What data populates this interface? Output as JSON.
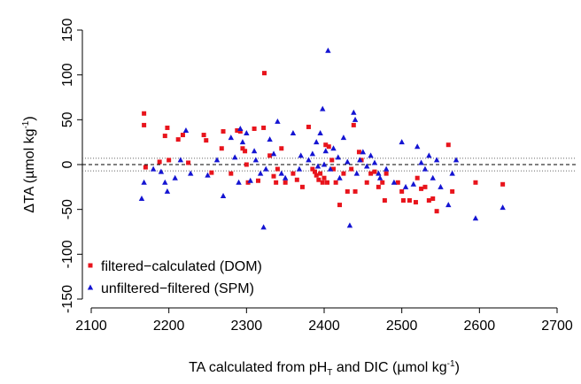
{
  "chart_data": {
    "type": "scatter",
    "xlabel": [
      "TA calculated from pH",
      "T",
      " and DIC (µmol kg",
      "-1",
      ")"
    ],
    "ylabel": [
      "ΔTA (µmol kg",
      "-1",
      ")"
    ],
    "xlim": [
      2100,
      2700
    ],
    "xticks": [
      2100,
      2200,
      2300,
      2400,
      2500,
      2600,
      2700
    ],
    "ylim": [
      -150,
      150
    ],
    "yticks": [
      -150,
      -100,
      -50,
      0,
      50,
      100,
      150
    ],
    "hlines": [
      {
        "y": 0,
        "style": "dashed"
      },
      {
        "y": 7,
        "style": "dotted"
      },
      {
        "y": -7,
        "style": "dotted"
      }
    ],
    "legend": "bottom-left",
    "series": [
      {
        "name": "filtered−calculated (DOM)",
        "color": "#e8141c",
        "marker": "square",
        "x": [
          2168,
          2168,
          2170,
          2188,
          2195,
          2198,
          2200,
          2212,
          2218,
          2225,
          2245,
          2248,
          2255,
          2270,
          2268,
          2280,
          2288,
          2292,
          2295,
          2298,
          2300,
          2302,
          2310,
          2315,
          2323,
          2322,
          2330,
          2335,
          2338,
          2340,
          2345,
          2350,
          2360,
          2365,
          2372,
          2380,
          2385,
          2388,
          2390,
          2393,
          2395,
          2398,
          2400,
          2402,
          2404,
          2406,
          2410,
          2412,
          2415,
          2420,
          2425,
          2430,
          2435,
          2438,
          2440,
          2445,
          2448,
          2455,
          2460,
          2465,
          2470,
          2475,
          2478,
          2480,
          2495,
          2500,
          2502,
          2510,
          2518,
          2520,
          2525,
          2530,
          2535,
          2540,
          2545,
          2560,
          2565,
          2595,
          2630
        ],
        "values": [
          57,
          44,
          -3,
          3,
          32,
          41,
          5,
          28,
          33,
          2,
          33,
          27,
          -9,
          37,
          18,
          -10,
          38,
          37,
          18,
          15,
          0,
          -20,
          40,
          -18,
          102,
          41,
          10,
          -13,
          -20,
          -5,
          18,
          -20,
          -10,
          -17,
          -25,
          42,
          -5,
          -8,
          -12,
          -17,
          -10,
          -20,
          -15,
          22,
          -20,
          20,
          5,
          -5,
          -20,
          -45,
          -10,
          -30,
          -5,
          44,
          -30,
          14,
          5,
          -20,
          -10,
          -8,
          -25,
          -20,
          -40,
          -10,
          -20,
          -30,
          -40,
          -40,
          -42,
          -15,
          -27,
          -25,
          -40,
          -38,
          -52,
          22,
          -30,
          -20,
          -22
        ]
      },
      {
        "name": "unfiltered−filtered (SPM)",
        "color": "#1414d2",
        "marker": "triangle",
        "x": [
          2165,
          2168,
          2180,
          2190,
          2195,
          2198,
          2208,
          2215,
          2222,
          2228,
          2250,
          2262,
          2270,
          2280,
          2285,
          2290,
          2292,
          2295,
          2300,
          2305,
          2310,
          2312,
          2318,
          2322,
          2325,
          2330,
          2335,
          2340,
          2345,
          2350,
          2360,
          2368,
          2370,
          2380,
          2385,
          2390,
          2392,
          2395,
          2398,
          2400,
          2402,
          2405,
          2408,
          2412,
          2418,
          2420,
          2425,
          2430,
          2433,
          2438,
          2440,
          2442,
          2446,
          2450,
          2455,
          2460,
          2465,
          2470,
          2472,
          2480,
          2490,
          2500,
          2505,
          2515,
          2520,
          2525,
          2530,
          2535,
          2540,
          2545,
          2550,
          2560,
          2565,
          2570,
          2595,
          2630
        ],
        "values": [
          -38,
          -20,
          -5,
          -8,
          -20,
          -30,
          -15,
          5,
          38,
          -10,
          -12,
          5,
          -35,
          30,
          8,
          -20,
          40,
          25,
          35,
          -18,
          15,
          5,
          -10,
          -70,
          -5,
          28,
          12,
          48,
          -10,
          -15,
          35,
          -5,
          10,
          5,
          12,
          25,
          -2,
          35,
          62,
          0,
          15,
          127,
          -5,
          18,
          8,
          -15,
          30,
          3,
          -68,
          58,
          50,
          -10,
          5,
          14,
          -2,
          10,
          2,
          -10,
          -15,
          -5,
          -20,
          25,
          -25,
          -22,
          20,
          2,
          -5,
          10,
          -15,
          5,
          -25,
          -45,
          -10,
          5,
          -60,
          -48
        ]
      }
    ]
  }
}
